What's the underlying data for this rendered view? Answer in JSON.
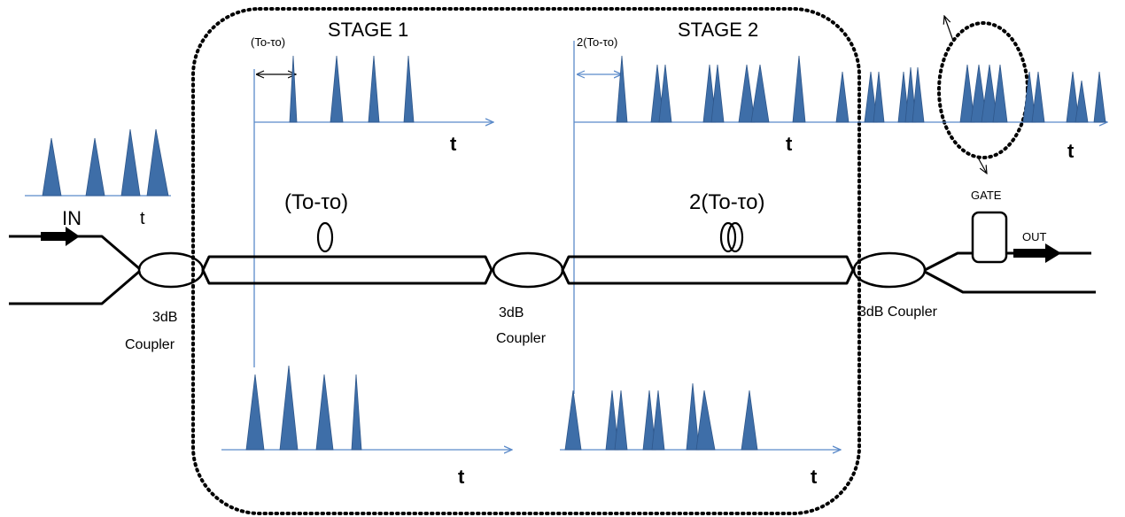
{
  "labels": {
    "stage1": "STAGE 1",
    "stage2": "STAGE 2",
    "delay1_small": "(To-τo)",
    "delay2_small": "2(To-τo)",
    "delay1_large": "(To-τo)",
    "delay2_large": "2(To-τo)",
    "input": "IN",
    "output": "OUT",
    "gate": "GATE",
    "coupler1_line1": "3dB",
    "coupler1_line2": "Coupler",
    "coupler2_line1": "3dB",
    "coupler2_line2": "Coupler",
    "coupler3": "3dB Coupler",
    "time_axis": "t"
  },
  "colors": {
    "pulse": "#3e6ea8",
    "axis": "#5b8ac9",
    "fiber": "#000000"
  }
}
